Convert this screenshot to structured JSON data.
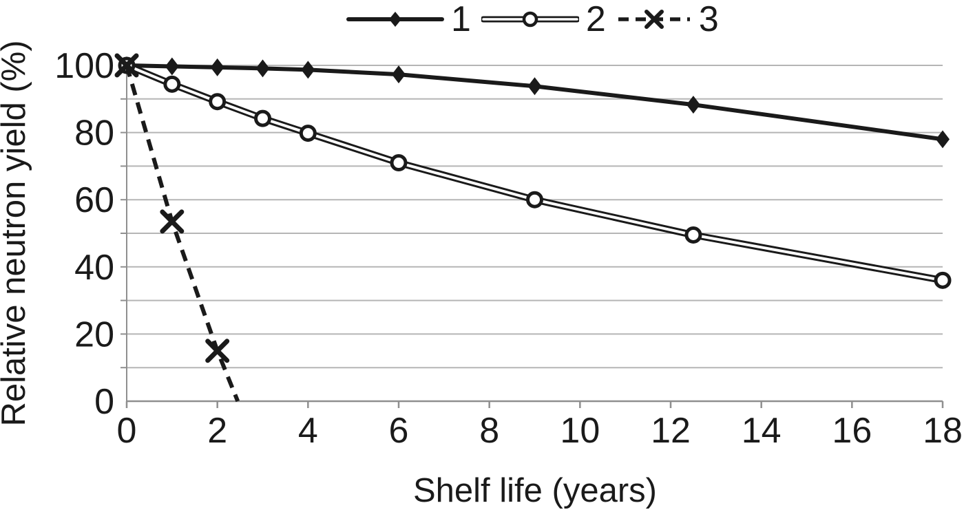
{
  "figure": {
    "background": "#ffffff",
    "text_color": "#1a1a1a",
    "grid_color": "#b5b5b5",
    "axis_color": "#8f8f8f"
  },
  "chart_data": {
    "type": "line",
    "title": "",
    "xlabel": "Shelf life (years)",
    "ylabel": "Relative neutron yield (%)",
    "xlim": [
      0,
      18
    ],
    "ylim": [
      0,
      100
    ],
    "x_ticks": [
      0,
      2,
      4,
      6,
      8,
      10,
      12,
      14,
      16,
      18
    ],
    "y_ticks": [
      0,
      20,
      40,
      60,
      80,
      100
    ],
    "y_gridlines": [
      10,
      20,
      30,
      40,
      50,
      60,
      70,
      80,
      90,
      100
    ],
    "grid": "horizontal-minor-every-10",
    "legend_position": "top-center",
    "series": [
      {
        "name": "1",
        "line": "solid",
        "marker": "filled-diamond",
        "color": "#1a1a1a",
        "x": [
          0,
          1,
          2,
          3,
          4,
          6,
          9,
          12.5,
          18
        ],
        "y": [
          100,
          99.7,
          99.4,
          99.1,
          98.7,
          97.3,
          93.8,
          88.3,
          78
        ]
      },
      {
        "name": "2",
        "line": "double",
        "marker": "open-circle",
        "color": "#1a1a1a",
        "x": [
          0,
          1,
          2,
          3,
          4,
          6,
          9,
          12.5,
          18
        ],
        "y": [
          100,
          94.4,
          89.2,
          84.2,
          79.8,
          71,
          60,
          49.5,
          36
        ]
      },
      {
        "name": "3",
        "line": "dashed",
        "marker": "x-cross",
        "color": "#1a1a1a",
        "x": [
          0,
          1,
          2
        ],
        "y": [
          100,
          53.5,
          15
        ],
        "extend_to": [
          2.45,
          0
        ]
      }
    ]
  }
}
